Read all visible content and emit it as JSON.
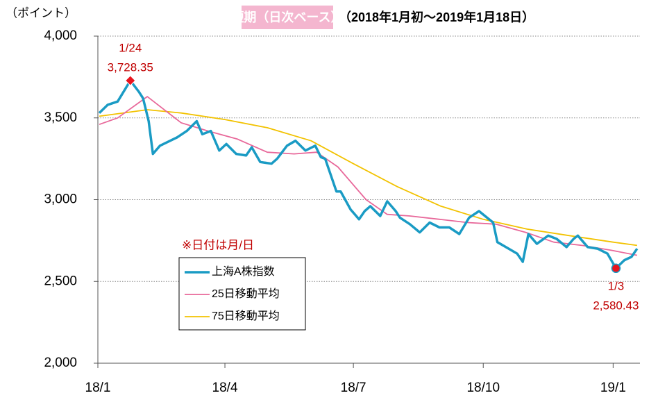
{
  "chart_data": {
    "type": "line",
    "title": "短期（日次ベース）",
    "subtitle": "（2018年1月初～2019年1月18日）",
    "y_label": "（ポイント）",
    "x_label": "（",
    "note": "※日付は月/日",
    "xlim": [
      "2018-01-01",
      "2019-01-20"
    ],
    "xticks": [
      {
        "value": "2018-01-01",
        "label": "18/1"
      },
      {
        "value": "2018-04-01",
        "label": "18/4"
      },
      {
        "value": "2018-07-01",
        "label": "18/7"
      },
      {
        "value": "2018-10-01",
        "label": "18/10"
      },
      {
        "value": "2019-01-01",
        "label": "19/1"
      }
    ],
    "ylim": [
      2000,
      4000
    ],
    "yticks": [
      {
        "value": 2000,
        "label": "2,000"
      },
      {
        "value": 2500,
        "label": "2,500"
      },
      {
        "value": 3000,
        "label": "3,000"
      },
      {
        "value": 3500,
        "label": "3,500"
      },
      {
        "value": 4000,
        "label": "4,000"
      }
    ],
    "grid": true,
    "series": [
      {
        "name": "上海A株指数",
        "color": "#1a9bc4",
        "x": [
          "2018-01-02",
          "2018-01-08",
          "2018-01-15",
          "2018-01-24",
          "2018-01-30",
          "2018-02-02",
          "2018-02-06",
          "2018-02-09",
          "2018-02-14",
          "2018-02-26",
          "2018-03-05",
          "2018-03-12",
          "2018-03-16",
          "2018-03-22",
          "2018-03-28",
          "2018-04-02",
          "2018-04-09",
          "2018-04-16",
          "2018-04-20",
          "2018-04-26",
          "2018-05-04",
          "2018-05-08",
          "2018-05-15",
          "2018-05-21",
          "2018-05-28",
          "2018-06-04",
          "2018-06-08",
          "2018-06-11",
          "2018-06-19",
          "2018-06-22",
          "2018-06-29",
          "2018-07-05",
          "2018-07-09",
          "2018-07-13",
          "2018-07-20",
          "2018-07-25",
          "2018-07-31",
          "2018-08-03",
          "2018-08-10",
          "2018-08-17",
          "2018-08-24",
          "2018-08-31",
          "2018-09-07",
          "2018-09-14",
          "2018-09-21",
          "2018-09-28",
          "2018-10-08",
          "2018-10-11",
          "2018-10-19",
          "2018-10-25",
          "2018-10-29",
          "2018-11-02",
          "2018-11-08",
          "2018-11-16",
          "2018-11-22",
          "2018-11-29",
          "2018-12-04",
          "2018-12-07",
          "2018-12-14",
          "2018-12-21",
          "2018-12-28",
          "2019-01-03",
          "2019-01-09",
          "2019-01-14",
          "2019-01-18"
        ],
        "values": [
          3530,
          3580,
          3600,
          3728.35,
          3660,
          3620,
          3480,
          3280,
          3330,
          3380,
          3420,
          3480,
          3400,
          3420,
          3300,
          3340,
          3280,
          3270,
          3320,
          3230,
          3220,
          3250,
          3330,
          3360,
          3300,
          3330,
          3260,
          3250,
          3050,
          3050,
          2940,
          2880,
          2930,
          2960,
          2900,
          2990,
          2930,
          2890,
          2850,
          2800,
          2860,
          2830,
          2830,
          2790,
          2890,
          2930,
          2860,
          2740,
          2700,
          2670,
          2620,
          2790,
          2730,
          2780,
          2760,
          2710,
          2760,
          2780,
          2710,
          2700,
          2670,
          2580.43,
          2630,
          2650,
          2700
        ]
      },
      {
        "name": "25日移動平均",
        "color": "#e8689a",
        "x": [
          "2018-01-02",
          "2018-01-15",
          "2018-02-05",
          "2018-02-20",
          "2018-03-01",
          "2018-03-20",
          "2018-04-10",
          "2018-05-01",
          "2018-05-20",
          "2018-06-05",
          "2018-06-20",
          "2018-07-10",
          "2018-07-25",
          "2018-08-10",
          "2018-08-31",
          "2018-09-20",
          "2018-10-10",
          "2018-10-31",
          "2018-11-20",
          "2018-12-10",
          "2018-12-31",
          "2019-01-18"
        ],
        "values": [
          3460,
          3500,
          3630,
          3530,
          3470,
          3420,
          3370,
          3290,
          3280,
          3290,
          3200,
          3000,
          2910,
          2900,
          2880,
          2860,
          2850,
          2800,
          2740,
          2720,
          2690,
          2660
        ]
      },
      {
        "name": "75日移動平均",
        "color": "#f2c200",
        "x": [
          "2018-01-02",
          "2018-02-05",
          "2018-03-01",
          "2018-04-01",
          "2018-05-01",
          "2018-06-01",
          "2018-07-01",
          "2018-08-01",
          "2018-09-01",
          "2018-10-01",
          "2018-11-01",
          "2018-12-01",
          "2019-01-01",
          "2019-01-18"
        ],
        "values": [
          3510,
          3550,
          3530,
          3490,
          3440,
          3360,
          3220,
          3080,
          2960,
          2880,
          2820,
          2780,
          2740,
          2720
        ]
      }
    ],
    "annotations": [
      {
        "date": "1/24",
        "value_label": "3,728.35"
      },
      {
        "date": "1/3",
        "value_label": "2,580.43"
      }
    ]
  }
}
